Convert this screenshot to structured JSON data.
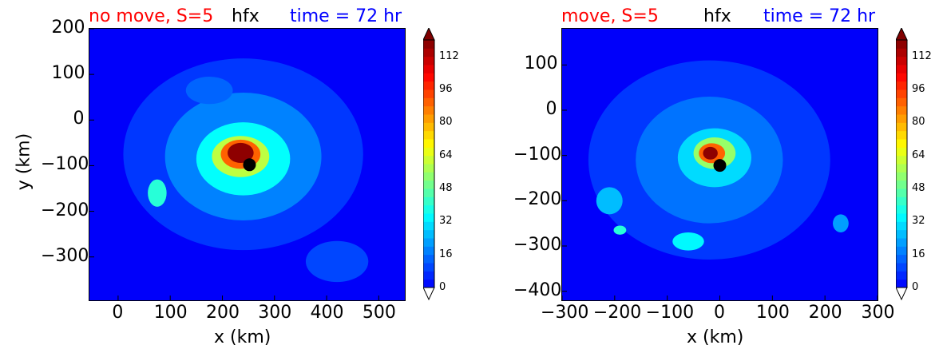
{
  "chart_data": [
    {
      "type": "heatmap",
      "title_left": "no move, S=5",
      "title_center": "hfx",
      "title_right": "time = 72 hr",
      "title_colors": {
        "left": "#ff0000",
        "center": "#000000",
        "right": "#0000ff"
      },
      "xlabel": "x (km)",
      "ylabel": "y (km)",
      "xlim": [
        -55,
        550
      ],
      "ylim": [
        -395,
        200
      ],
      "xticks": [
        0,
        100,
        200,
        300,
        400,
        500
      ],
      "yticks": [
        200,
        100,
        0,
        -100,
        -200,
        -300
      ],
      "marker": {
        "x": 252,
        "y": -98,
        "color": "#000000"
      },
      "blobs": [
        {
          "x": 240,
          "y": -75,
          "rx": 230,
          "ry": 210,
          "level": 8
        },
        {
          "x": 240,
          "y": -80,
          "rx": 150,
          "ry": 140,
          "level": 18
        },
        {
          "x": 240,
          "y": -85,
          "rx": 90,
          "ry": 80,
          "level": 35
        },
        {
          "x": 235,
          "y": -80,
          "rx": 55,
          "ry": 45,
          "level": 60
        },
        {
          "x": 235,
          "y": -75,
          "rx": 38,
          "ry": 32,
          "level": 90
        },
        {
          "x": 235,
          "y": -72,
          "rx": 25,
          "ry": 22,
          "level": 118
        },
        {
          "x": 75,
          "y": -160,
          "rx": 18,
          "ry": 30,
          "level": 40
        },
        {
          "x": 175,
          "y": 65,
          "rx": 45,
          "ry": 30,
          "level": 14
        },
        {
          "x": 420,
          "y": -310,
          "rx": 60,
          "ry": 45,
          "level": 10
        }
      ],
      "colorbar": {
        "min": 0,
        "max": 120,
        "ticks": [
          0,
          16,
          32,
          48,
          64,
          80,
          96,
          112
        ]
      }
    },
    {
      "type": "heatmap",
      "title_left": "move, S=5",
      "title_center": "hfx",
      "title_right": "time = 72 hr",
      "title_colors": {
        "left": "#ff0000",
        "center": "#000000",
        "right": "#0000ff"
      },
      "xlabel": "x (km)",
      "ylabel": "",
      "xlim": [
        -300,
        300
      ],
      "ylim": [
        -420,
        180
      ],
      "xticks": [
        -300,
        -200,
        -100,
        0,
        100,
        200,
        300
      ],
      "yticks": [
        100,
        0,
        -100,
        -200,
        -300,
        -400
      ],
      "marker": {
        "x": 0,
        "y": -122,
        "color": "#000000"
      },
      "blobs": [
        {
          "x": -20,
          "y": -110,
          "rx": 230,
          "ry": 220,
          "level": 8
        },
        {
          "x": -20,
          "y": -110,
          "rx": 140,
          "ry": 140,
          "level": 16
        },
        {
          "x": -10,
          "y": -105,
          "rx": 70,
          "ry": 65,
          "level": 30
        },
        {
          "x": -10,
          "y": -95,
          "rx": 40,
          "ry": 35,
          "level": 55
        },
        {
          "x": -15,
          "y": -95,
          "rx": 25,
          "ry": 22,
          "level": 90
        },
        {
          "x": -18,
          "y": -95,
          "rx": 14,
          "ry": 14,
          "level": 118
        },
        {
          "x": -60,
          "y": -290,
          "rx": 30,
          "ry": 20,
          "level": 34
        },
        {
          "x": -210,
          "y": -200,
          "rx": 25,
          "ry": 30,
          "level": 26
        },
        {
          "x": -190,
          "y": -265,
          "rx": 12,
          "ry": 10,
          "level": 40
        },
        {
          "x": 230,
          "y": -250,
          "rx": 15,
          "ry": 20,
          "level": 22
        }
      ],
      "colorbar": {
        "min": 0,
        "max": 120,
        "ticks": [
          0,
          16,
          32,
          48,
          64,
          80,
          96,
          112
        ]
      }
    }
  ]
}
